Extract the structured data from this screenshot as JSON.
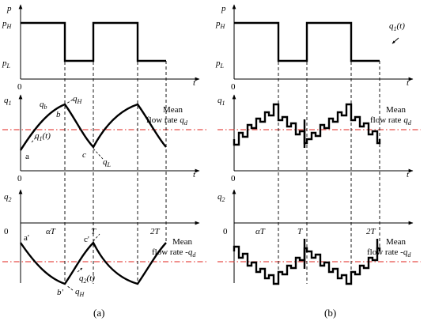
{
  "panel_a": {
    "top": {
      "y_label": "p",
      "p_high_main": "p",
      "p_high_sub": "H",
      "p_low_main": "p",
      "p_low_sub": "L",
      "origin": "0",
      "x_label": "t"
    },
    "mid": {
      "y_label_main": "q",
      "y_label_sub": "1",
      "origin": "0",
      "x_label": "t",
      "label_qb_main": "q",
      "label_qb_sub": "b",
      "label_qH_main": "q",
      "label_qH_sub": "H",
      "label_q1t_main": "q",
      "label_q1t_sub": "1",
      "label_q1t_tail": "(t)",
      "label_a": "a",
      "label_b": "b",
      "label_c": "c",
      "label_qL_main": "q",
      "label_qL_sub": "L",
      "mean_line1": "Mean",
      "mean_line2": "flow rate",
      "mean_q_main": "q",
      "mean_q_sub": "d"
    },
    "bot": {
      "y_label_main": "q",
      "y_label_sub": "2",
      "origin": "0",
      "tick_alphaT": "αT",
      "tick_T": "T",
      "tick_2T": "2T",
      "label_a_prime": "a'",
      "label_c_prime": "c'",
      "label_b_prime": "b'",
      "label_q2t_main": "q",
      "label_q2t_sub": "2",
      "label_q2t_tail": "(t)",
      "label_qH_main": "q",
      "label_qH_sub": "H",
      "mean_line1": "Mean",
      "mean_line2": "flow rate -",
      "mean_q_main": "q",
      "mean_q_sub": "d"
    },
    "caption": "(a)"
  },
  "panel_b": {
    "top": {
      "y_label": "p",
      "p_high_main": "p",
      "p_high_sub": "H",
      "p_low_main": "p",
      "p_low_sub": "L",
      "origin": "0",
      "x_label": "t",
      "label_q1t_main": "q",
      "label_q1t_sub": "1",
      "label_q1t_tail": "(t)"
    },
    "mid": {
      "y_label_main": "q",
      "y_label_sub": "1",
      "origin": "0",
      "x_label": "t",
      "mean_line1": "Mean",
      "mean_line2": "flow rate",
      "mean_q_main": "q",
      "mean_q_sub": "d"
    },
    "bot": {
      "y_label_main": "q",
      "y_label_sub": "2",
      "origin": "0",
      "tick_alphaT": "αT",
      "tick_T": "T",
      "tick_2T": "2T",
      "mean_line1": "Mean",
      "mean_line2": "flow rate -",
      "mean_q_main": "q",
      "mean_q_sub": "d"
    },
    "caption": "(b)"
  },
  "colors": {
    "mean_line": "#e0201b",
    "signal": "#000000"
  }
}
